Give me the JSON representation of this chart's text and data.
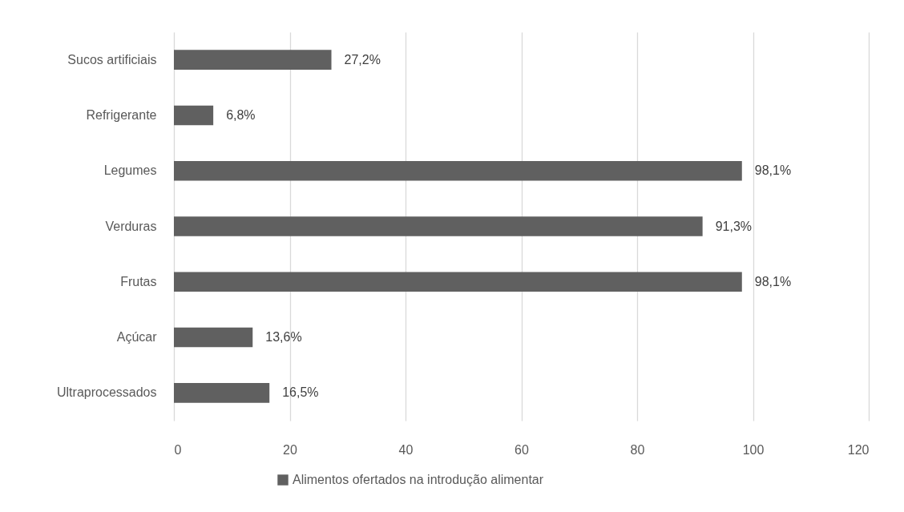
{
  "chart_data": {
    "type": "bar",
    "orientation": "horizontal",
    "categories": [
      "Sucos artificiais",
      "Refrigerante",
      "Legumes",
      "Verduras",
      "Frutas",
      "Açúcar",
      "Ultraprocessados"
    ],
    "series": [
      {
        "name": "Alimentos ofertados na introdução alimentar",
        "color": "#606060",
        "values": [
          27.2,
          6.8,
          98.1,
          91.3,
          98.1,
          13.6,
          16.5
        ],
        "value_labels": [
          "27,2%",
          "6,8%",
          "98,1%",
          "91,3%",
          "98,1%",
          "13,6%",
          "16,5%"
        ]
      }
    ],
    "xlim": [
      0,
      120
    ],
    "xticks": [
      0,
      20,
      40,
      60,
      80,
      100,
      120
    ],
    "grid": "x",
    "legend": "bottom"
  }
}
